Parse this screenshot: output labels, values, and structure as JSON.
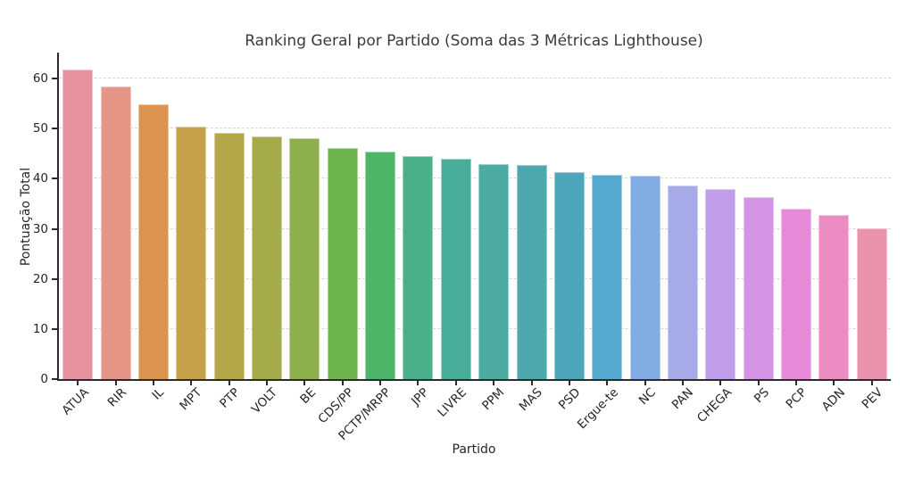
{
  "chart_data": {
    "type": "bar",
    "title": "Ranking Geral por Partido (Soma das 3 Métricas Lighthouse)",
    "xlabel": "Partido",
    "ylabel": "Pontuação Total",
    "ylim": [
      0,
      65.2
    ],
    "yticks": [
      0,
      10,
      20,
      30,
      40,
      50,
      60
    ],
    "grid": "horizontal-dashed",
    "legend": "none",
    "categories": [
      "ATUA",
      "RIR",
      "IL",
      "MPT",
      "PTP",
      "VOLT",
      "BE",
      "CDS/PP",
      "PCTP/MRPP",
      "JPP",
      "LIVRE",
      "PPM",
      "MAS",
      "PSD",
      "Ergue-te",
      "NC",
      "PAN",
      "CHEGA",
      "PS",
      "PCP",
      "ADN",
      "PEV"
    ],
    "values": [
      61.9,
      58.5,
      54.8,
      50.4,
      49.1,
      48.4,
      48.1,
      46.2,
      45.4,
      44.6,
      44.0,
      43.0,
      42.7,
      41.3,
      40.8,
      40.6,
      38.6,
      38.0,
      36.3,
      34.1,
      32.8,
      30.1
    ],
    "bar_colors": [
      "#e7929f",
      "#e69687",
      "#dc9550",
      "#c6a14c",
      "#b3a749",
      "#a3ab4a",
      "#8daf4c",
      "#6db44d",
      "#4db568",
      "#4bb089",
      "#48ae9a",
      "#4daba1",
      "#4da8ad",
      "#4ea6bd",
      "#55a8ce",
      "#81ade2",
      "#a6aae7",
      "#bf9de8",
      "#d593e5",
      "#e68ad8",
      "#eb8cc3",
      "#e892ae"
    ],
    "axis_color": "#2b2b2b",
    "grid_color": "#d6d6d6"
  }
}
